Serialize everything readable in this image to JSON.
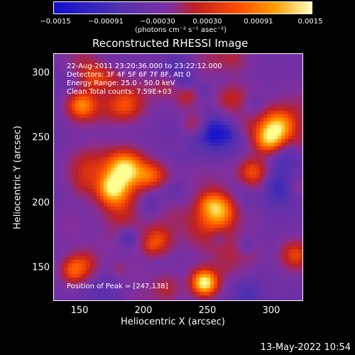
{
  "colorbar": {
    "ticks": [
      "−0.0015",
      "−0.00091",
      "−0.00030",
      "0.00030",
      "0.00091",
      "0.0015"
    ],
    "units": "(photons cm⁻² s⁻¹ asec⁻²)",
    "colors": [
      "#1010d0",
      "#5030b0",
      "#8030a0",
      "#c02020",
      "#ff5000",
      "#ffa000",
      "#ffff90"
    ]
  },
  "chart_data": {
    "type": "heatmap",
    "title": "Reconstructed RHESSI Image",
    "xlabel": "Heliocentric X (arcsec)",
    "ylabel": "Heliocentric Y (arcsec)",
    "xlim": [
      130,
      325
    ],
    "ylim": [
      123,
      317
    ],
    "xticks": [
      150,
      200,
      250,
      300
    ],
    "yticks": [
      150,
      200,
      250,
      300
    ],
    "value_range": [
      -0.0015,
      0.0015
    ],
    "annotations": {
      "date": "22-Aug-2011 23:20:36.000 to 23:22:12.000",
      "detectors": "Detectors: 3F 4F 5F 6F 7F 8F, Att 0",
      "energy": "Energy Range: 25.0 - 50.0 keV",
      "clean": "Clean    Total counts: 7.59E+03",
      "peak": "Position of Peak = [247,138]"
    },
    "peak": [
      247,
      138
    ]
  },
  "footer": {
    "timestamp": "13-May-2022 10:54"
  }
}
